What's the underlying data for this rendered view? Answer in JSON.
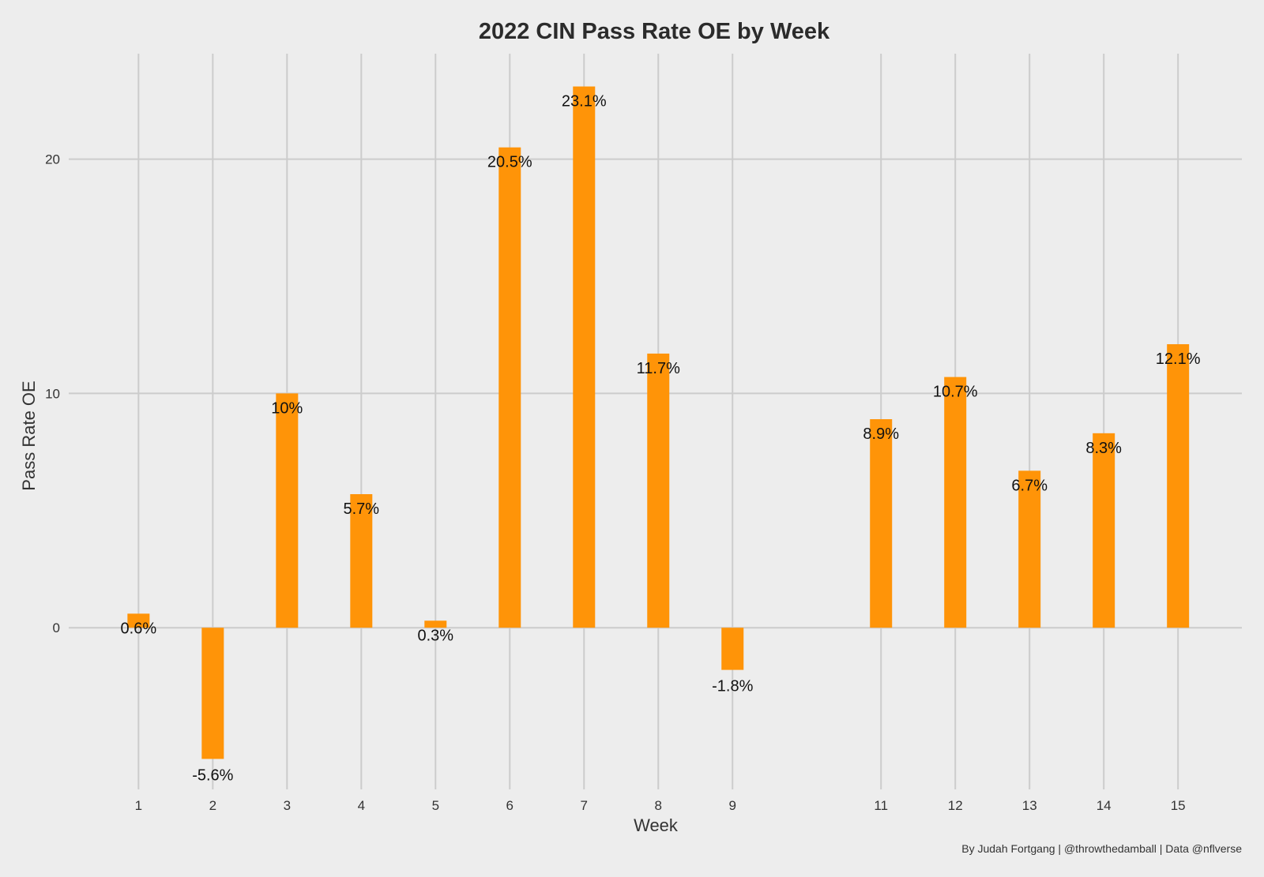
{
  "chart_data": {
    "type": "bar",
    "title": "2022 CIN Pass Rate OE by Week",
    "xlabel": "Week",
    "ylabel": "Pass Rate OE",
    "caption": "By Judah Fortgang | @throwthedamball | Data @nflverse",
    "x": [
      1,
      2,
      3,
      4,
      5,
      6,
      7,
      8,
      9,
      11,
      12,
      13,
      14,
      15
    ],
    "values": [
      0.6,
      -5.6,
      10.0,
      5.7,
      0.3,
      20.5,
      23.1,
      11.7,
      -1.8,
      8.9,
      10.7,
      6.7,
      8.3,
      12.1
    ],
    "labels": [
      "0.6%",
      "-5.6%",
      "10%",
      "5.7%",
      "0.3%",
      "20.5%",
      "23.1%",
      "11.7%",
      "-1.8%",
      "8.9%",
      "10.7%",
      "6.7%",
      "8.3%",
      "12.1%"
    ],
    "x_ticks": [
      1,
      2,
      3,
      4,
      5,
      6,
      7,
      8,
      9,
      11,
      12,
      13,
      14,
      15
    ],
    "y_ticks": [
      0,
      10,
      20
    ],
    "xlim": [
      0.06,
      15.86
    ],
    "ylim": [
      -6.9,
      24.5
    ],
    "grid": true,
    "legend": "none",
    "bar_color": "#ff9408",
    "background_color": "#ededed",
    "grid_color": "#cccccc"
  }
}
